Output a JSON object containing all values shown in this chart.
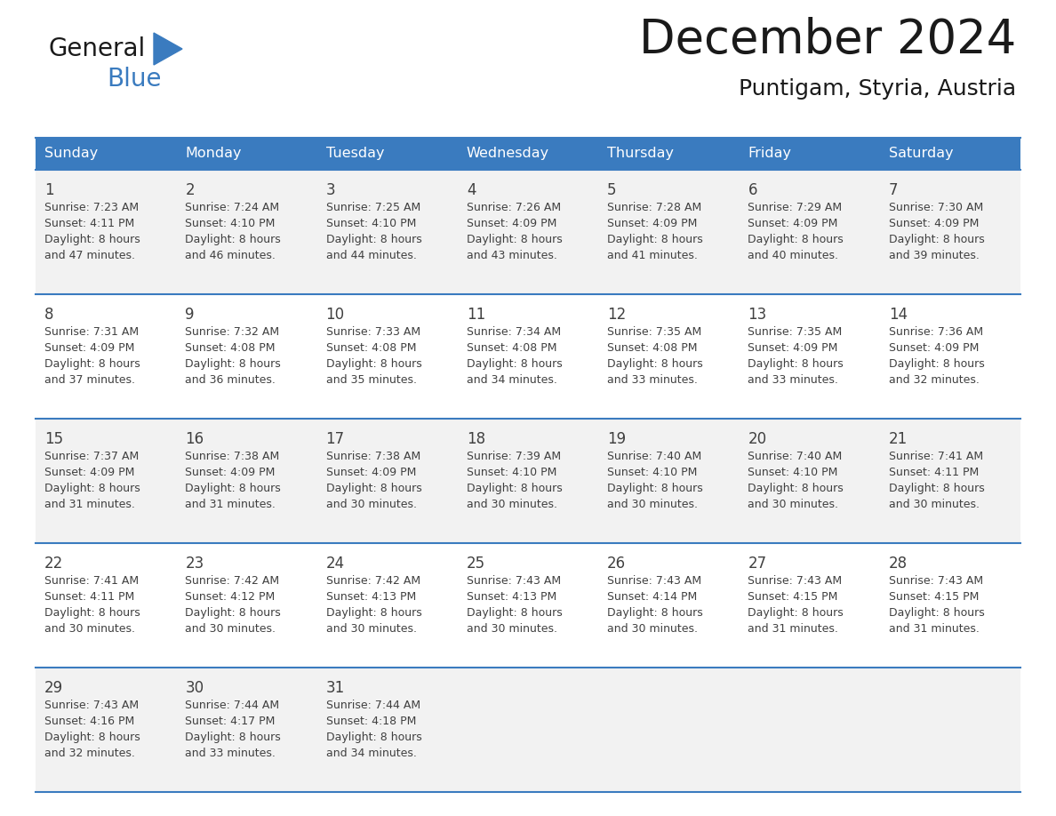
{
  "title": "December 2024",
  "subtitle": "Puntigam, Styria, Austria",
  "days_of_week": [
    "Sunday",
    "Monday",
    "Tuesday",
    "Wednesday",
    "Thursday",
    "Friday",
    "Saturday"
  ],
  "header_bg": "#3a7bbf",
  "header_text": "#ffffff",
  "row_bg_light": "#f2f2f2",
  "row_bg_white": "#ffffff",
  "divider_color": "#3a7bbf",
  "text_color": "#404040",
  "calendar_data": [
    [
      {
        "day": 1,
        "sunrise": "7:23 AM",
        "sunset": "4:11 PM",
        "daylight_line1": "Daylight: 8 hours",
        "daylight_line2": "and 47 minutes."
      },
      {
        "day": 2,
        "sunrise": "7:24 AM",
        "sunset": "4:10 PM",
        "daylight_line1": "Daylight: 8 hours",
        "daylight_line2": "and 46 minutes."
      },
      {
        "day": 3,
        "sunrise": "7:25 AM",
        "sunset": "4:10 PM",
        "daylight_line1": "Daylight: 8 hours",
        "daylight_line2": "and 44 minutes."
      },
      {
        "day": 4,
        "sunrise": "7:26 AM",
        "sunset": "4:09 PM",
        "daylight_line1": "Daylight: 8 hours",
        "daylight_line2": "and 43 minutes."
      },
      {
        "day": 5,
        "sunrise": "7:28 AM",
        "sunset": "4:09 PM",
        "daylight_line1": "Daylight: 8 hours",
        "daylight_line2": "and 41 minutes."
      },
      {
        "day": 6,
        "sunrise": "7:29 AM",
        "sunset": "4:09 PM",
        "daylight_line1": "Daylight: 8 hours",
        "daylight_line2": "and 40 minutes."
      },
      {
        "day": 7,
        "sunrise": "7:30 AM",
        "sunset": "4:09 PM",
        "daylight_line1": "Daylight: 8 hours",
        "daylight_line2": "and 39 minutes."
      }
    ],
    [
      {
        "day": 8,
        "sunrise": "7:31 AM",
        "sunset": "4:09 PM",
        "daylight_line1": "Daylight: 8 hours",
        "daylight_line2": "and 37 minutes."
      },
      {
        "day": 9,
        "sunrise": "7:32 AM",
        "sunset": "4:08 PM",
        "daylight_line1": "Daylight: 8 hours",
        "daylight_line2": "and 36 minutes."
      },
      {
        "day": 10,
        "sunrise": "7:33 AM",
        "sunset": "4:08 PM",
        "daylight_line1": "Daylight: 8 hours",
        "daylight_line2": "and 35 minutes."
      },
      {
        "day": 11,
        "sunrise": "7:34 AM",
        "sunset": "4:08 PM",
        "daylight_line1": "Daylight: 8 hours",
        "daylight_line2": "and 34 minutes."
      },
      {
        "day": 12,
        "sunrise": "7:35 AM",
        "sunset": "4:08 PM",
        "daylight_line1": "Daylight: 8 hours",
        "daylight_line2": "and 33 minutes."
      },
      {
        "day": 13,
        "sunrise": "7:35 AM",
        "sunset": "4:09 PM",
        "daylight_line1": "Daylight: 8 hours",
        "daylight_line2": "and 33 minutes."
      },
      {
        "day": 14,
        "sunrise": "7:36 AM",
        "sunset": "4:09 PM",
        "daylight_line1": "Daylight: 8 hours",
        "daylight_line2": "and 32 minutes."
      }
    ],
    [
      {
        "day": 15,
        "sunrise": "7:37 AM",
        "sunset": "4:09 PM",
        "daylight_line1": "Daylight: 8 hours",
        "daylight_line2": "and 31 minutes."
      },
      {
        "day": 16,
        "sunrise": "7:38 AM",
        "sunset": "4:09 PM",
        "daylight_line1": "Daylight: 8 hours",
        "daylight_line2": "and 31 minutes."
      },
      {
        "day": 17,
        "sunrise": "7:38 AM",
        "sunset": "4:09 PM",
        "daylight_line1": "Daylight: 8 hours",
        "daylight_line2": "and 30 minutes."
      },
      {
        "day": 18,
        "sunrise": "7:39 AM",
        "sunset": "4:10 PM",
        "daylight_line1": "Daylight: 8 hours",
        "daylight_line2": "and 30 minutes."
      },
      {
        "day": 19,
        "sunrise": "7:40 AM",
        "sunset": "4:10 PM",
        "daylight_line1": "Daylight: 8 hours",
        "daylight_line2": "and 30 minutes."
      },
      {
        "day": 20,
        "sunrise": "7:40 AM",
        "sunset": "4:10 PM",
        "daylight_line1": "Daylight: 8 hours",
        "daylight_line2": "and 30 minutes."
      },
      {
        "day": 21,
        "sunrise": "7:41 AM",
        "sunset": "4:11 PM",
        "daylight_line1": "Daylight: 8 hours",
        "daylight_line2": "and 30 minutes."
      }
    ],
    [
      {
        "day": 22,
        "sunrise": "7:41 AM",
        "sunset": "4:11 PM",
        "daylight_line1": "Daylight: 8 hours",
        "daylight_line2": "and 30 minutes."
      },
      {
        "day": 23,
        "sunrise": "7:42 AM",
        "sunset": "4:12 PM",
        "daylight_line1": "Daylight: 8 hours",
        "daylight_line2": "and 30 minutes."
      },
      {
        "day": 24,
        "sunrise": "7:42 AM",
        "sunset": "4:13 PM",
        "daylight_line1": "Daylight: 8 hours",
        "daylight_line2": "and 30 minutes."
      },
      {
        "day": 25,
        "sunrise": "7:43 AM",
        "sunset": "4:13 PM",
        "daylight_line1": "Daylight: 8 hours",
        "daylight_line2": "and 30 minutes."
      },
      {
        "day": 26,
        "sunrise": "7:43 AM",
        "sunset": "4:14 PM",
        "daylight_line1": "Daylight: 8 hours",
        "daylight_line2": "and 30 minutes."
      },
      {
        "day": 27,
        "sunrise": "7:43 AM",
        "sunset": "4:15 PM",
        "daylight_line1": "Daylight: 8 hours",
        "daylight_line2": "and 31 minutes."
      },
      {
        "day": 28,
        "sunrise": "7:43 AM",
        "sunset": "4:15 PM",
        "daylight_line1": "Daylight: 8 hours",
        "daylight_line2": "and 31 minutes."
      }
    ],
    [
      {
        "day": 29,
        "sunrise": "7:43 AM",
        "sunset": "4:16 PM",
        "daylight_line1": "Daylight: 8 hours",
        "daylight_line2": "and 32 minutes."
      },
      {
        "day": 30,
        "sunrise": "7:44 AM",
        "sunset": "4:17 PM",
        "daylight_line1": "Daylight: 8 hours",
        "daylight_line2": "and 33 minutes."
      },
      {
        "day": 31,
        "sunrise": "7:44 AM",
        "sunset": "4:18 PM",
        "daylight_line1": "Daylight: 8 hours",
        "daylight_line2": "and 34 minutes."
      },
      null,
      null,
      null,
      null
    ]
  ]
}
